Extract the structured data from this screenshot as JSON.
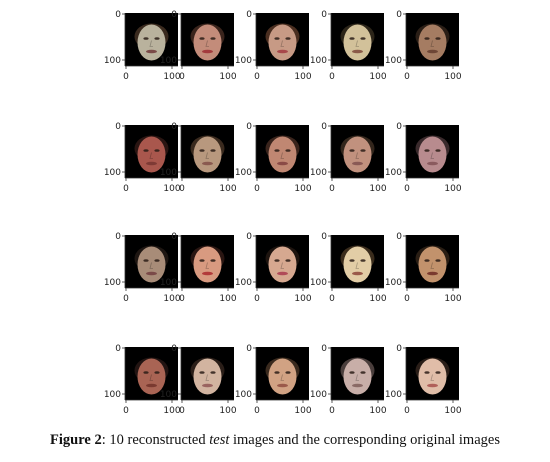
{
  "figure": {
    "rows": [
      {
        "panels": [
          {
            "face_icon": "face-icon",
            "skin": "#b9b29d",
            "hair": "#3a2a1e",
            "mouth": "#7a4a48"
          },
          {
            "face_icon": "face-icon",
            "skin": "#c38c7a",
            "hair": "#3a241c",
            "mouth": "#a33b3d"
          },
          {
            "face_icon": "face-icon",
            "skin": "#c79a85",
            "hair": "#4a2e20",
            "mouth": "#a8474a"
          },
          {
            "face_icon": "face-icon",
            "skin": "#d2c19a",
            "hair": "#2c2519",
            "mouth": "#8a5a48"
          },
          {
            "face_icon": "face-icon",
            "skin": "#a57c62",
            "hair": "#2a1e16",
            "mouth": "#6e4636"
          }
        ]
      },
      {
        "panels": [
          {
            "face_icon": "face-icon",
            "skin": "#a9574d",
            "hair": "#2a1512",
            "mouth": "#7e3a35"
          },
          {
            "face_icon": "face-icon",
            "skin": "#b8987e",
            "hair": "#3a2a1e",
            "mouth": "#8a5a50"
          },
          {
            "face_icon": "face-icon",
            "skin": "#c08772",
            "hair": "#3a241c",
            "mouth": "#8a4a46"
          },
          {
            "face_icon": "face-icon",
            "skin": "#c1917e",
            "hair": "#33261c",
            "mouth": "#8a5a55"
          },
          {
            "face_icon": "face-icon",
            "skin": "#b88b8e",
            "hair": "#3a2a2c",
            "mouth": "#8a5a5e"
          }
        ]
      },
      {
        "panels": [
          {
            "face_icon": "face-icon",
            "skin": "#a88c78",
            "hair": "#1e1612",
            "mouth": "#7a4a48"
          },
          {
            "face_icon": "face-icon",
            "skin": "#d89a80",
            "hair": "#2a1612",
            "mouth": "#b23a3a"
          },
          {
            "face_icon": "face-icon",
            "skin": "#d6a890",
            "hair": "#1e140f",
            "mouth": "#b04a58"
          },
          {
            "face_icon": "face-icon",
            "skin": "#e2cda6",
            "hair": "#3a2c1c",
            "mouth": "#9a5a4a"
          },
          {
            "face_icon": "face-icon",
            "skin": "#c2926c",
            "hair": "#2a1e14",
            "mouth": "#7a3a2e"
          }
        ]
      },
      {
        "panels": [
          {
            "face_icon": "face-icon",
            "skin": "#a96454",
            "hair": "#221412",
            "mouth": "#7a3a30"
          },
          {
            "face_icon": "face-icon",
            "skin": "#d2b4a0",
            "hair": "#2a1e18",
            "mouth": "#9a6460"
          },
          {
            "face_icon": "face-icon",
            "skin": "#d1a283",
            "hair": "#3a2a1e",
            "mouth": "#9a5a4a"
          },
          {
            "face_icon": "face-icon",
            "skin": "#c8aea8",
            "hair": "#4a3e3c",
            "mouth": "#8a6a66"
          },
          {
            "face_icon": "face-icon",
            "skin": "#e0bda8",
            "hair": "#2a1e18",
            "mouth": "#b0605a"
          }
        ]
      }
    ],
    "axis": {
      "y_ticks": [
        "0",
        "100"
      ],
      "x_ticks": [
        "0",
        "100"
      ]
    },
    "panel_background": "#000000"
  },
  "caption": {
    "label": "Figure 2",
    "separator": ": 10 reconstructed ",
    "emphasis": "test",
    "rest": " images and the corresponding original images"
  }
}
